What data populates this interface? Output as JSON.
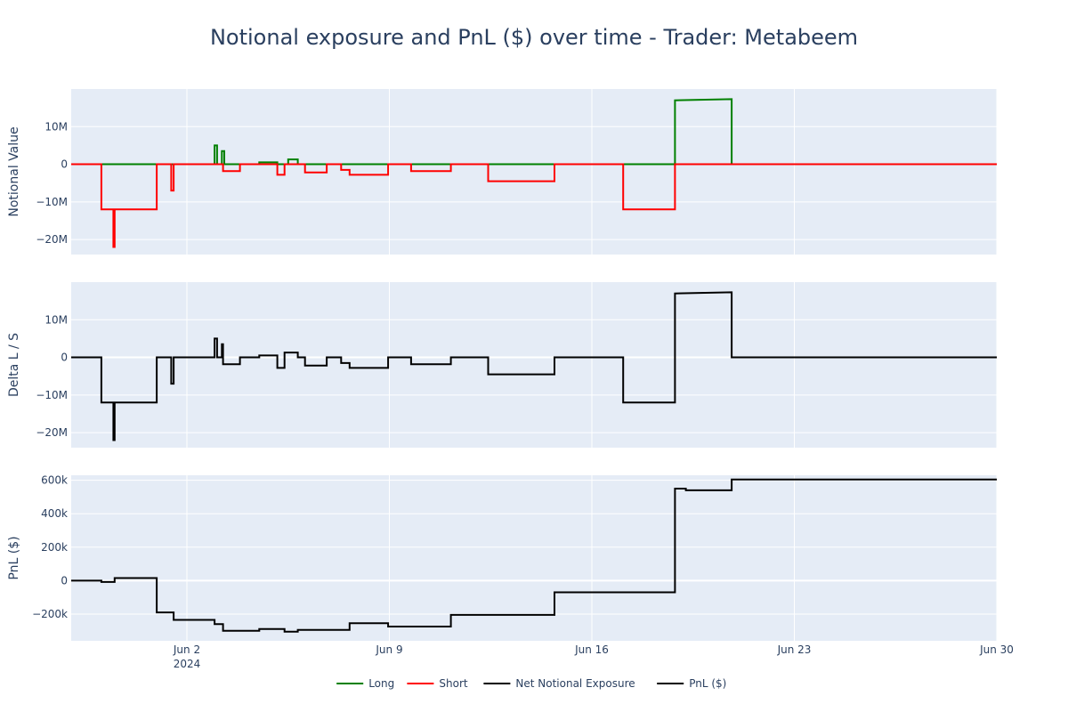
{
  "chart_data": {
    "type": "line",
    "title": "Notional exposure and PnL ($) over time - Trader: Metabeem",
    "x_axis": {
      "range": [
        "2024-05-29",
        "2024-06-30"
      ],
      "ticks": [
        {
          "date": "2024-06-02",
          "label": "Jun 2",
          "sublabel": "2024"
        },
        {
          "date": "2024-06-09",
          "label": "Jun 9",
          "sublabel": ""
        },
        {
          "date": "2024-06-16",
          "label": "Jun 16",
          "sublabel": ""
        },
        {
          "date": "2024-06-23",
          "label": "Jun 23",
          "sublabel": ""
        },
        {
          "date": "2024-06-30",
          "label": "Jun 30",
          "sublabel": ""
        }
      ]
    },
    "panels": [
      {
        "id": "notional",
        "ylabel": "Notional Value",
        "ylim": [
          -24000000,
          20000000
        ],
        "yticks": [
          {
            "value": 10000000,
            "label": "10M"
          },
          {
            "value": 0,
            "label": "0"
          },
          {
            "value": -10000000,
            "label": "−10M"
          },
          {
            "value": -20000000,
            "label": "−20M"
          }
        ],
        "series": [
          {
            "name": "Long",
            "color": "#008000",
            "points": [
              [
                "2024-05-29T00:00",
                0
              ],
              [
                "2024-06-02T23:00",
                0
              ],
              [
                "2024-06-02T23:00",
                5000000
              ],
              [
                "2024-06-03T01:00",
                5000000
              ],
              [
                "2024-06-03T01:00",
                0
              ],
              [
                "2024-06-03T05:00",
                0
              ],
              [
                "2024-06-03T05:00",
                3500000
              ],
              [
                "2024-06-03T07:00",
                3500000
              ],
              [
                "2024-06-03T07:00",
                0
              ],
              [
                "2024-06-04T12:00",
                0
              ],
              [
                "2024-06-04T12:00",
                500000
              ],
              [
                "2024-06-05T03:00",
                500000
              ],
              [
                "2024-06-05T03:00",
                0
              ],
              [
                "2024-06-05T12:00",
                0
              ],
              [
                "2024-06-05T12:00",
                1300000
              ],
              [
                "2024-06-05T20:00",
                1300000
              ],
              [
                "2024-06-05T20:00",
                0
              ],
              [
                "2024-06-18T21:00",
                0
              ],
              [
                "2024-06-18T21:00",
                17000000
              ],
              [
                "2024-06-20T20:00",
                17300000
              ],
              [
                "2024-06-20T20:00",
                0
              ],
              [
                "2024-06-30T00:00",
                0
              ]
            ]
          },
          {
            "name": "Short",
            "color": "#ff0000",
            "points": [
              [
                "2024-05-29T00:00",
                0
              ],
              [
                "2024-05-30T01:00",
                0
              ],
              [
                "2024-05-30T01:00",
                -12000000
              ],
              [
                "2024-05-30T11:00",
                -12000000
              ],
              [
                "2024-05-30T11:00",
                -22000000
              ],
              [
                "2024-05-30T12:00",
                -22000000
              ],
              [
                "2024-05-30T12:00",
                -12000000
              ],
              [
                "2024-05-31T23:00",
                -12000000
              ],
              [
                "2024-05-31T23:00",
                0
              ],
              [
                "2024-06-01T11:00",
                0
              ],
              [
                "2024-06-01T11:00",
                -7000000
              ],
              [
                "2024-06-01T13:00",
                -7000000
              ],
              [
                "2024-06-01T13:00",
                0
              ],
              [
                "2024-06-03T06:00",
                0
              ],
              [
                "2024-06-03T06:00",
                -1800000
              ],
              [
                "2024-06-03T20:00",
                -1800000
              ],
              [
                "2024-06-03T20:00",
                0
              ],
              [
                "2024-06-05T03:00",
                0
              ],
              [
                "2024-06-05T03:00",
                -2800000
              ],
              [
                "2024-06-05T09:00",
                -2800000
              ],
              [
                "2024-06-05T09:00",
                0
              ],
              [
                "2024-06-06T02:00",
                0
              ],
              [
                "2024-06-06T02:00",
                -2200000
              ],
              [
                "2024-06-06T20:00",
                -2200000
              ],
              [
                "2024-06-06T20:00",
                0
              ],
              [
                "2024-06-07T08:00",
                0
              ],
              [
                "2024-06-07T08:00",
                -1500000
              ],
              [
                "2024-06-07T15:00",
                -1500000
              ],
              [
                "2024-06-07T15:00",
                -2800000
              ],
              [
                "2024-06-08T23:00",
                -2800000
              ],
              [
                "2024-06-08T23:00",
                0
              ],
              [
                "2024-06-09T18:00",
                0
              ],
              [
                "2024-06-09T18:00",
                -1800000
              ],
              [
                "2024-06-11T03:00",
                -1800000
              ],
              [
                "2024-06-11T03:00",
                0
              ],
              [
                "2024-06-12T10:00",
                0
              ],
              [
                "2024-06-12T10:00",
                -4500000
              ],
              [
                "2024-06-14T17:00",
                -4500000
              ],
              [
                "2024-06-14T17:00",
                0
              ],
              [
                "2024-06-17T02:00",
                0
              ],
              [
                "2024-06-17T02:00",
                -12000000
              ],
              [
                "2024-06-18T21:00",
                -12000000
              ],
              [
                "2024-06-18T21:00",
                0
              ],
              [
                "2024-06-30T00:00",
                0
              ]
            ]
          }
        ]
      },
      {
        "id": "delta",
        "ylabel": "Delta L / S",
        "ylim": [
          -24000000,
          20000000
        ],
        "yticks": [
          {
            "value": 10000000,
            "label": "10M"
          },
          {
            "value": 0,
            "label": "0"
          },
          {
            "value": -10000000,
            "label": "−10M"
          },
          {
            "value": -20000000,
            "label": "−20M"
          }
        ],
        "series": [
          {
            "name": "Net Notional Exposure",
            "color": "#000000",
            "points": [
              [
                "2024-05-29T00:00",
                0
              ],
              [
                "2024-05-30T01:00",
                0
              ],
              [
                "2024-05-30T01:00",
                -12000000
              ],
              [
                "2024-05-30T11:00",
                -12000000
              ],
              [
                "2024-05-30T11:00",
                -22000000
              ],
              [
                "2024-05-30T12:00",
                -22000000
              ],
              [
                "2024-05-30T12:00",
                -12000000
              ],
              [
                "2024-05-31T23:00",
                -12000000
              ],
              [
                "2024-05-31T23:00",
                0
              ],
              [
                "2024-06-01T11:00",
                0
              ],
              [
                "2024-06-01T11:00",
                -7000000
              ],
              [
                "2024-06-01T13:00",
                -7000000
              ],
              [
                "2024-06-01T13:00",
                0
              ],
              [
                "2024-06-02T23:00",
                0
              ],
              [
                "2024-06-02T23:00",
                5000000
              ],
              [
                "2024-06-03T01:00",
                5000000
              ],
              [
                "2024-06-03T01:00",
                0
              ],
              [
                "2024-06-03T05:00",
                0
              ],
              [
                "2024-06-03T05:00",
                3500000
              ],
              [
                "2024-06-03T06:00",
                3500000
              ],
              [
                "2024-06-03T06:00",
                -1800000
              ],
              [
                "2024-06-03T20:00",
                -1800000
              ],
              [
                "2024-06-03T20:00",
                0
              ],
              [
                "2024-06-04T12:00",
                0
              ],
              [
                "2024-06-04T12:00",
                500000
              ],
              [
                "2024-06-05T03:00",
                500000
              ],
              [
                "2024-06-05T03:00",
                -2800000
              ],
              [
                "2024-06-05T09:00",
                -2800000
              ],
              [
                "2024-06-05T09:00",
                1300000
              ],
              [
                "2024-06-05T20:00",
                1300000
              ],
              [
                "2024-06-05T20:00",
                0
              ],
              [
                "2024-06-06T02:00",
                0
              ],
              [
                "2024-06-06T02:00",
                -2200000
              ],
              [
                "2024-06-06T20:00",
                -2200000
              ],
              [
                "2024-06-06T20:00",
                0
              ],
              [
                "2024-06-07T08:00",
                0
              ],
              [
                "2024-06-07T08:00",
                -1500000
              ],
              [
                "2024-06-07T15:00",
                -1500000
              ],
              [
                "2024-06-07T15:00",
                -2800000
              ],
              [
                "2024-06-08T23:00",
                -2800000
              ],
              [
                "2024-06-08T23:00",
                0
              ],
              [
                "2024-06-09T18:00",
                0
              ],
              [
                "2024-06-09T18:00",
                -1800000
              ],
              [
                "2024-06-11T03:00",
                -1800000
              ],
              [
                "2024-06-11T03:00",
                0
              ],
              [
                "2024-06-12T10:00",
                0
              ],
              [
                "2024-06-12T10:00",
                -4500000
              ],
              [
                "2024-06-14T17:00",
                -4500000
              ],
              [
                "2024-06-14T17:00",
                0
              ],
              [
                "2024-06-17T02:00",
                0
              ],
              [
                "2024-06-17T02:00",
                -12000000
              ],
              [
                "2024-06-18T21:00",
                -12000000
              ],
              [
                "2024-06-18T21:00",
                17000000
              ],
              [
                "2024-06-20T20:00",
                17300000
              ],
              [
                "2024-06-20T20:00",
                0
              ],
              [
                "2024-06-30T00:00",
                0
              ]
            ]
          }
        ]
      },
      {
        "id": "pnl",
        "ylabel": "PnL ($)",
        "ylim": [
          -360000,
          630000
        ],
        "yticks": [
          {
            "value": 600000,
            "label": "600k"
          },
          {
            "value": 400000,
            "label": "400k"
          },
          {
            "value": 200000,
            "label": "200k"
          },
          {
            "value": 0,
            "label": "0"
          },
          {
            "value": -200000,
            "label": "−200k"
          }
        ],
        "series": [
          {
            "name": "PnL ($)",
            "color": "#000000",
            "points": [
              [
                "2024-05-29T00:00",
                0
              ],
              [
                "2024-05-30T01:00",
                0
              ],
              [
                "2024-05-30T01:00",
                -8000
              ],
              [
                "2024-05-30T12:00",
                -8000
              ],
              [
                "2024-05-30T12:00",
                15000
              ],
              [
                "2024-05-31T23:00",
                15000
              ],
              [
                "2024-05-31T23:00",
                -190000
              ],
              [
                "2024-06-01T13:00",
                -190000
              ],
              [
                "2024-06-01T13:00",
                -235000
              ],
              [
                "2024-06-02T23:00",
                -235000
              ],
              [
                "2024-06-02T23:00",
                -260000
              ],
              [
                "2024-06-03T06:00",
                -260000
              ],
              [
                "2024-06-03T06:00",
                -300000
              ],
              [
                "2024-06-04T12:00",
                -300000
              ],
              [
                "2024-06-04T12:00",
                -290000
              ],
              [
                "2024-06-05T09:00",
                -290000
              ],
              [
                "2024-06-05T09:00",
                -305000
              ],
              [
                "2024-06-05T20:00",
                -305000
              ],
              [
                "2024-06-05T20:00",
                -295000
              ],
              [
                "2024-06-07T15:00",
                -295000
              ],
              [
                "2024-06-07T15:00",
                -255000
              ],
              [
                "2024-06-08T23:00",
                -255000
              ],
              [
                "2024-06-08T23:00",
                -275000
              ],
              [
                "2024-06-11T03:00",
                -275000
              ],
              [
                "2024-06-11T03:00",
                -205000
              ],
              [
                "2024-06-14T17:00",
                -205000
              ],
              [
                "2024-06-14T17:00",
                -70000
              ],
              [
                "2024-06-18T21:00",
                -70000
              ],
              [
                "2024-06-18T21:00",
                550000
              ],
              [
                "2024-06-19T06:00",
                550000
              ],
              [
                "2024-06-19T06:00",
                540000
              ],
              [
                "2024-06-20T20:00",
                540000
              ],
              [
                "2024-06-20T20:00",
                605000
              ],
              [
                "2024-06-30T00:00",
                605000
              ]
            ]
          }
        ]
      }
    ],
    "legend": {
      "position": "bottom-center",
      "entries": [
        {
          "name": "Long",
          "color": "#008000"
        },
        {
          "name": "Short",
          "color": "#ff0000"
        },
        {
          "name": "Net Notional Exposure",
          "color": "#000000"
        },
        {
          "name": "PnL ($)",
          "color": "#000000"
        }
      ]
    },
    "style": {
      "plot_bg": "#e5ecf6",
      "grid_color": "#ffffff",
      "text_color": "#2a3f5f",
      "grid": true
    }
  }
}
